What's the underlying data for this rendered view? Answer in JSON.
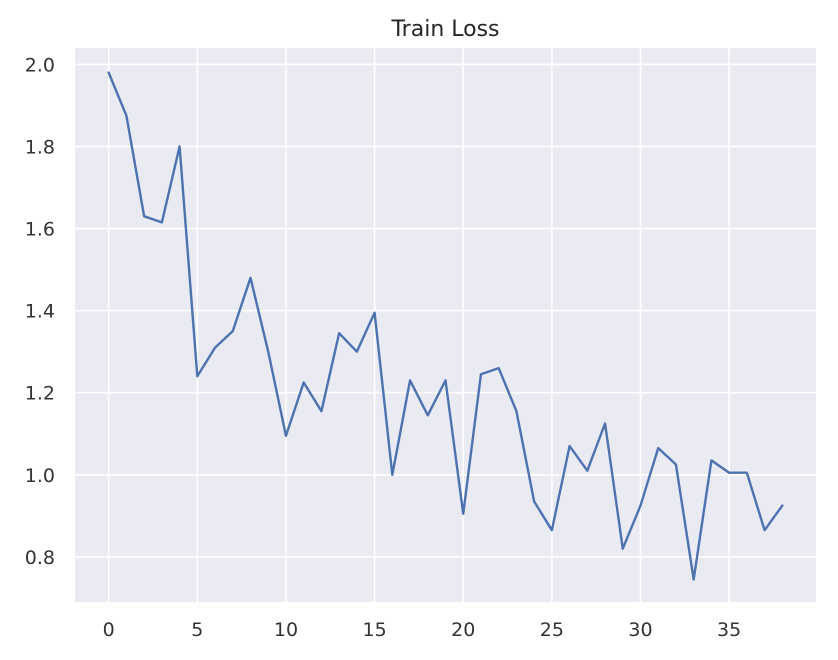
{
  "chart_data": {
    "type": "line",
    "title": "Train Loss",
    "xlabel": "",
    "ylabel": "",
    "xlim": [
      -1.9,
      39.9
    ],
    "ylim": [
      0.69,
      2.04
    ],
    "xticks": [
      0,
      5,
      10,
      15,
      20,
      25,
      30,
      35
    ],
    "yticks": [
      0.8,
      1.0,
      1.2,
      1.4,
      1.6,
      1.8,
      2.0
    ],
    "grid": true,
    "legend": "none",
    "series": [
      {
        "color": "#4c72b0",
        "x": [
          0,
          1,
          2,
          3,
          4,
          5,
          6,
          7,
          8,
          9,
          10,
          11,
          12,
          13,
          14,
          15,
          16,
          17,
          18,
          19,
          20,
          21,
          22,
          23,
          24,
          25,
          26,
          27,
          28,
          29,
          30,
          31,
          32,
          33,
          34,
          35,
          36,
          37,
          38
        ],
        "values": [
          1.98,
          1.875,
          1.63,
          1.615,
          1.8,
          1.24,
          1.31,
          1.35,
          1.48,
          1.3,
          1.095,
          1.225,
          1.155,
          1.345,
          1.3,
          1.395,
          1.0,
          1.23,
          1.145,
          1.23,
          0.905,
          1.245,
          1.26,
          1.155,
          0.935,
          0.865,
          1.07,
          1.01,
          1.125,
          0.82,
          0.925,
          1.065,
          1.025,
          0.745,
          1.035,
          1.005,
          1.005,
          0.865,
          0.925
        ]
      }
    ]
  },
  "colors": {
    "plot_background": "#eaeaf2",
    "grid": "#ffffff",
    "line": "#4c72b0"
  }
}
